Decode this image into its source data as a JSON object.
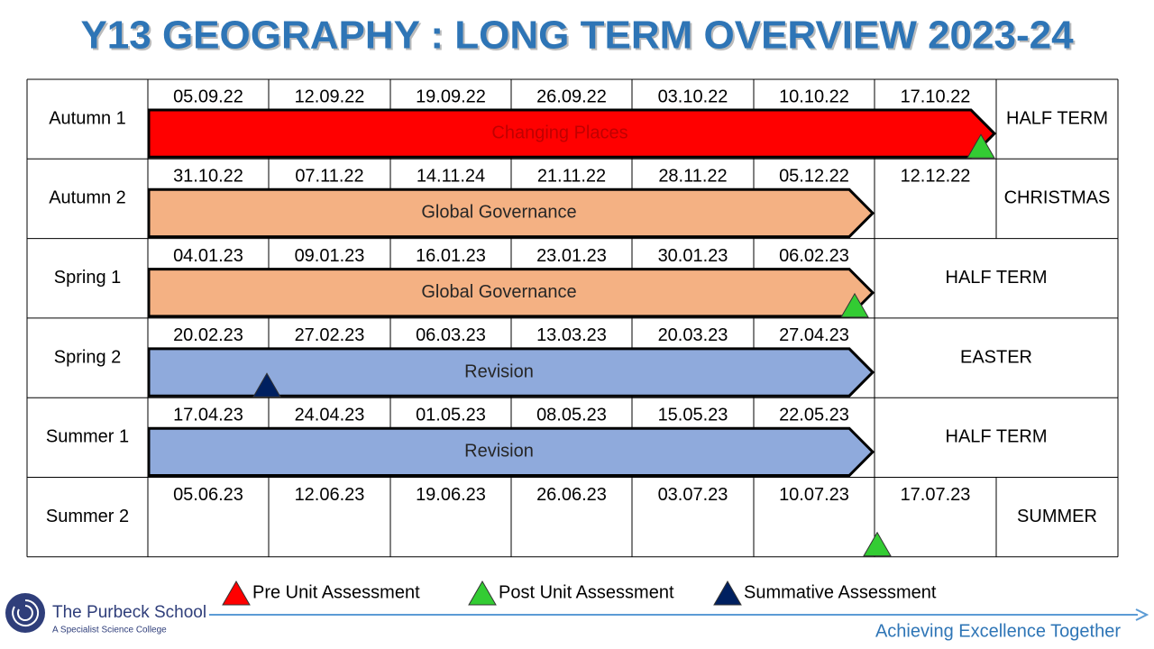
{
  "title": "Y13 GEOGRAPHY : LONG TERM OVERVIEW 2023-24",
  "table": {
    "rows": [
      {
        "term": "Autumn 1",
        "weeks": [
          "05.09.22",
          "12.09.22",
          "19.09.22",
          "26.09.22",
          "03.10.22",
          "10.10.22",
          "17.10.22"
        ],
        "holiday": "HALF TERM",
        "bar": {
          "label": "Changing Places",
          "color": "#ff0000",
          "text_color": "#c00000"
        }
      },
      {
        "term": "Autumn 2",
        "weeks": [
          "31.10.22",
          "07.11.22",
          "14.11.24",
          "21.11.22",
          "28.11.22",
          "05.12.22",
          "12.12.22"
        ],
        "holiday": "CHRISTMAS",
        "bar": {
          "label": "Global Governance",
          "color": "#f4b183",
          "text_color": "#262626"
        }
      },
      {
        "term": "Spring 1",
        "weeks": [
          "04.01.23",
          "09.01.23",
          "16.01.23",
          "23.01.23",
          "30.01.23",
          "06.02.23"
        ],
        "holiday": "HALF TERM",
        "bar": {
          "label": "Global Governance",
          "color": "#f4b183",
          "text_color": "#262626"
        }
      },
      {
        "term": "Spring 2",
        "weeks": [
          "20.02.23",
          "27.02.23",
          "06.03.23",
          "13.03.23",
          "20.03.23",
          "27.04.23"
        ],
        "holiday": "EASTER",
        "bar": {
          "label": "Revision",
          "color": "#8faadc",
          "text_color": "#262626"
        }
      },
      {
        "term": "Summer 1",
        "weeks": [
          "17.04.23",
          "24.04.23",
          "01.05.23",
          "08.05.23",
          "15.05.23",
          "22.05.23"
        ],
        "holiday": "HALF TERM",
        "bar": {
          "label": "Revision",
          "color": "#8faadc",
          "text_color": "#262626"
        }
      },
      {
        "term": "Summer 2",
        "weeks": [
          "05.06.23",
          "12.06.23",
          "19.06.23",
          "26.06.23",
          "03.07.23",
          "10.07.23",
          "17.07.23"
        ],
        "holiday": "SUMMER"
      }
    ]
  },
  "legend": [
    {
      "label": "Pre Unit Assessment",
      "color": "#ff0000"
    },
    {
      "label": "Post Unit Assessment",
      "color": "#33cc33"
    },
    {
      "label": "Summative Assessment",
      "color": "#002060"
    }
  ],
  "footer": {
    "school": "The Purbeck School",
    "subtitle": "A Specialist Science College",
    "motto": "Achieving Excellence Together"
  }
}
